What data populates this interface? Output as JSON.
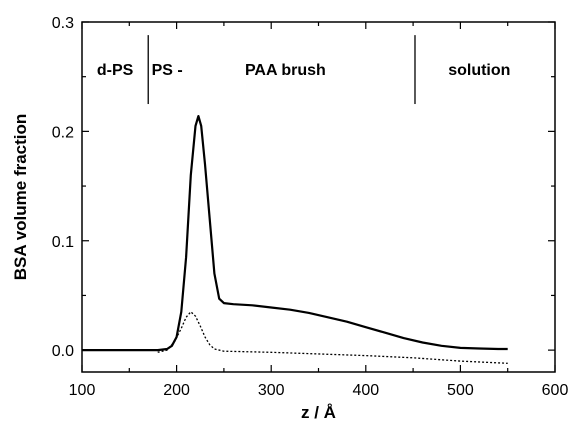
{
  "chart_data": {
    "type": "line",
    "xlabel": "z / Å",
    "ylabel": "BSA volume fraction",
    "xlim": [
      100,
      600
    ],
    "ylim": [
      -0.02,
      0.3
    ],
    "x_ticks": [
      100,
      200,
      300,
      400,
      500,
      600
    ],
    "x_tick_labels": [
      "100",
      "200",
      "300",
      "400",
      "500",
      "600"
    ],
    "y_ticks": [
      0.0,
      0.1,
      0.2,
      0.3
    ],
    "y_tick_labels": [
      "0.0",
      "0.1",
      "0.2",
      "0.3"
    ],
    "grid": false,
    "annotations": [
      {
        "text": "d-PS",
        "x": 135,
        "y": 0.257
      },
      {
        "text": "PS -",
        "x": 190,
        "y": 0.257
      },
      {
        "text": "PAA brush",
        "x": 315,
        "y": 0.257
      },
      {
        "text": "solution",
        "x": 520,
        "y": 0.257
      }
    ],
    "separators": [
      {
        "x": 170,
        "y0": 0.225,
        "y1": 0.288
      },
      {
        "x": 452,
        "y0": 0.225,
        "y1": 0.288
      }
    ],
    "series": [
      {
        "style": "solid",
        "x": [
          100,
          180,
          190,
          195,
          200,
          205,
          210,
          215,
          220,
          223,
          226,
          230,
          235,
          240,
          245,
          250,
          260,
          280,
          300,
          320,
          340,
          360,
          380,
          400,
          420,
          440,
          460,
          480,
          500,
          520,
          540,
          550
        ],
        "y": [
          0.0,
          0.0,
          0.001,
          0.004,
          0.012,
          0.035,
          0.085,
          0.16,
          0.205,
          0.214,
          0.205,
          0.17,
          0.12,
          0.07,
          0.047,
          0.043,
          0.042,
          0.041,
          0.039,
          0.037,
          0.034,
          0.03,
          0.026,
          0.021,
          0.016,
          0.011,
          0.007,
          0.004,
          0.002,
          0.0015,
          0.001,
          0.001
        ]
      },
      {
        "style": "dotted",
        "x": [
          180,
          190,
          198,
          205,
          210,
          215,
          220,
          225,
          230,
          235,
          240,
          250,
          300,
          400,
          450,
          500,
          550
        ],
        "y": [
          -0.002,
          0.0,
          0.008,
          0.02,
          0.03,
          0.035,
          0.031,
          0.022,
          0.012,
          0.005,
          0.001,
          -0.001,
          -0.002,
          -0.005,
          -0.007,
          -0.01,
          -0.012
        ]
      }
    ]
  }
}
